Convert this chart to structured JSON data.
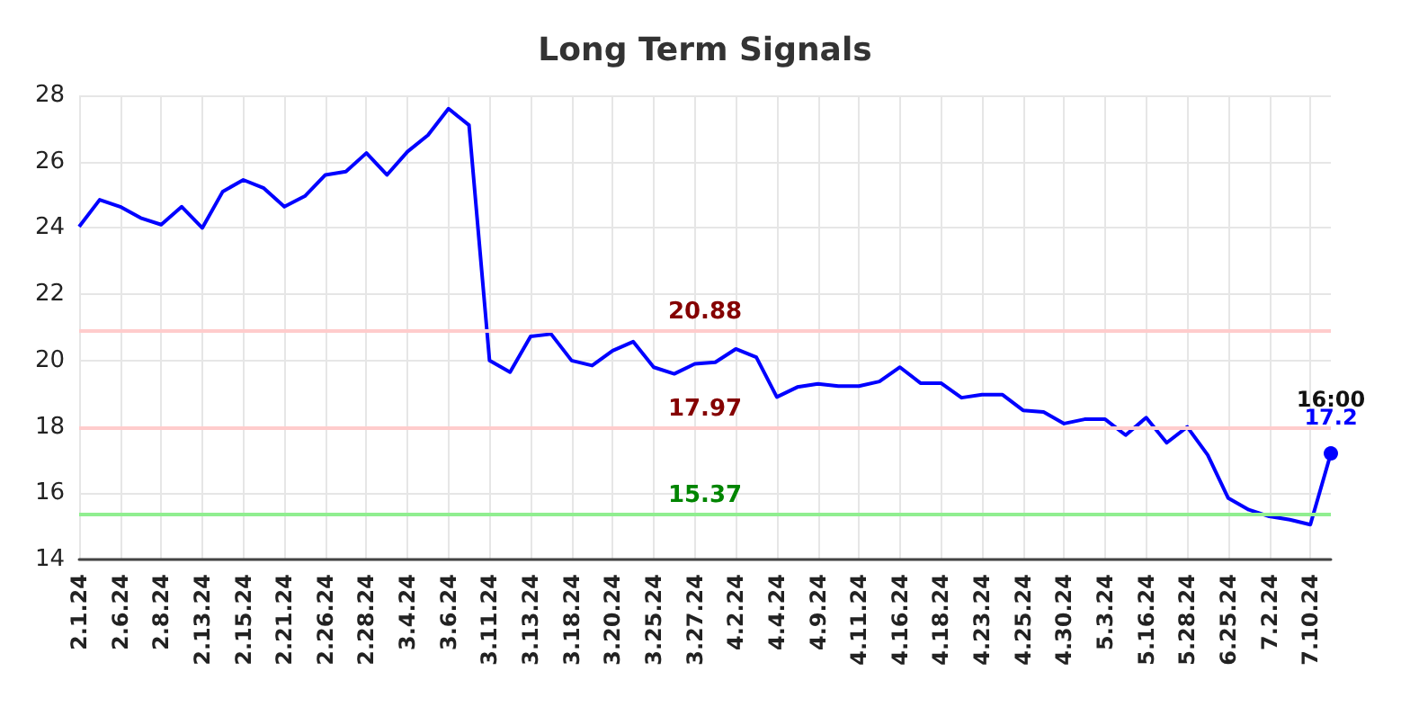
{
  "chart_data": {
    "type": "line",
    "title": "Long Term Signals",
    "categories": [
      "2.1.24",
      null,
      "2.6.24",
      null,
      "2.8.24",
      null,
      "2.13.24",
      null,
      "2.15.24",
      null,
      "2.21.24",
      null,
      "2.26.24",
      null,
      "2.28.24",
      null,
      "3.4.24",
      null,
      "3.6.24",
      null,
      "3.11.24",
      null,
      "3.13.24",
      null,
      "3.18.24",
      null,
      "3.20.24",
      null,
      "3.25.24",
      null,
      "3.27.24",
      null,
      "4.2.24",
      null,
      "4.4.24",
      null,
      "4.9.24",
      null,
      "4.11.24",
      null,
      "4.16.24",
      null,
      "4.18.24",
      null,
      "4.23.24",
      null,
      "4.25.24",
      null,
      "4.30.24",
      null,
      "5.3.24",
      null,
      "5.16.24",
      null,
      "5.28.24",
      null,
      "6.25.24",
      null,
      "7.2.24",
      null,
      "7.10.24",
      null
    ],
    "series": [
      {
        "color": "#0000ff",
        "values": [
          24.04,
          24.85,
          24.64,
          24.3,
          24.1,
          24.64,
          24.0,
          25.1,
          25.45,
          25.2,
          24.64,
          24.96,
          25.6,
          25.7,
          26.26,
          25.6,
          26.3,
          26.8,
          27.6,
          27.1,
          20.0,
          19.65,
          20.73,
          20.8,
          20.0,
          19.85,
          20.3,
          20.57,
          19.8,
          19.6,
          19.9,
          19.95,
          20.35,
          20.1,
          18.9,
          19.2,
          19.3,
          19.23,
          19.23,
          19.37,
          19.8,
          19.32,
          19.32,
          18.88,
          18.97,
          18.97,
          18.5,
          18.45,
          18.1,
          18.23,
          18.23,
          17.75,
          18.28,
          17.52,
          18.0,
          17.15,
          15.85,
          15.5,
          15.3,
          15.2,
          15.05,
          17.2
        ],
        "value_labels": [
          null,
          null,
          null,
          null,
          null,
          null,
          null,
          null,
          null,
          null,
          null,
          null,
          null,
          null,
          null,
          null,
          null,
          null,
          null,
          null,
          null,
          null,
          null,
          null,
          null,
          null,
          null,
          null,
          null,
          null,
          null,
          null,
          null,
          null,
          null,
          null,
          null,
          null,
          null,
          null,
          null,
          null,
          null,
          null,
          null,
          null,
          null,
          null,
          null,
          null,
          null,
          null,
          null,
          null,
          null,
          null,
          null,
          null,
          null,
          null,
          null,
          "17.2"
        ]
      }
    ],
    "ylim": [
      14,
      28
    ],
    "yticks": [
      14,
      16,
      18,
      20,
      22,
      24,
      26,
      28
    ],
    "grid": true,
    "ref_lines": [
      {
        "axis": "y",
        "value": 20.88,
        "label": "20.88",
        "color": "#ffcccc"
      },
      {
        "axis": "y",
        "value": 17.97,
        "label": "17.97",
        "color": "#ffcccc"
      },
      {
        "axis": "y",
        "value": 15.37,
        "label": "15.37",
        "color": "#90ee90"
      }
    ],
    "annotations": [
      {
        "text": "16:00",
        "y": 17.2
      }
    ]
  }
}
